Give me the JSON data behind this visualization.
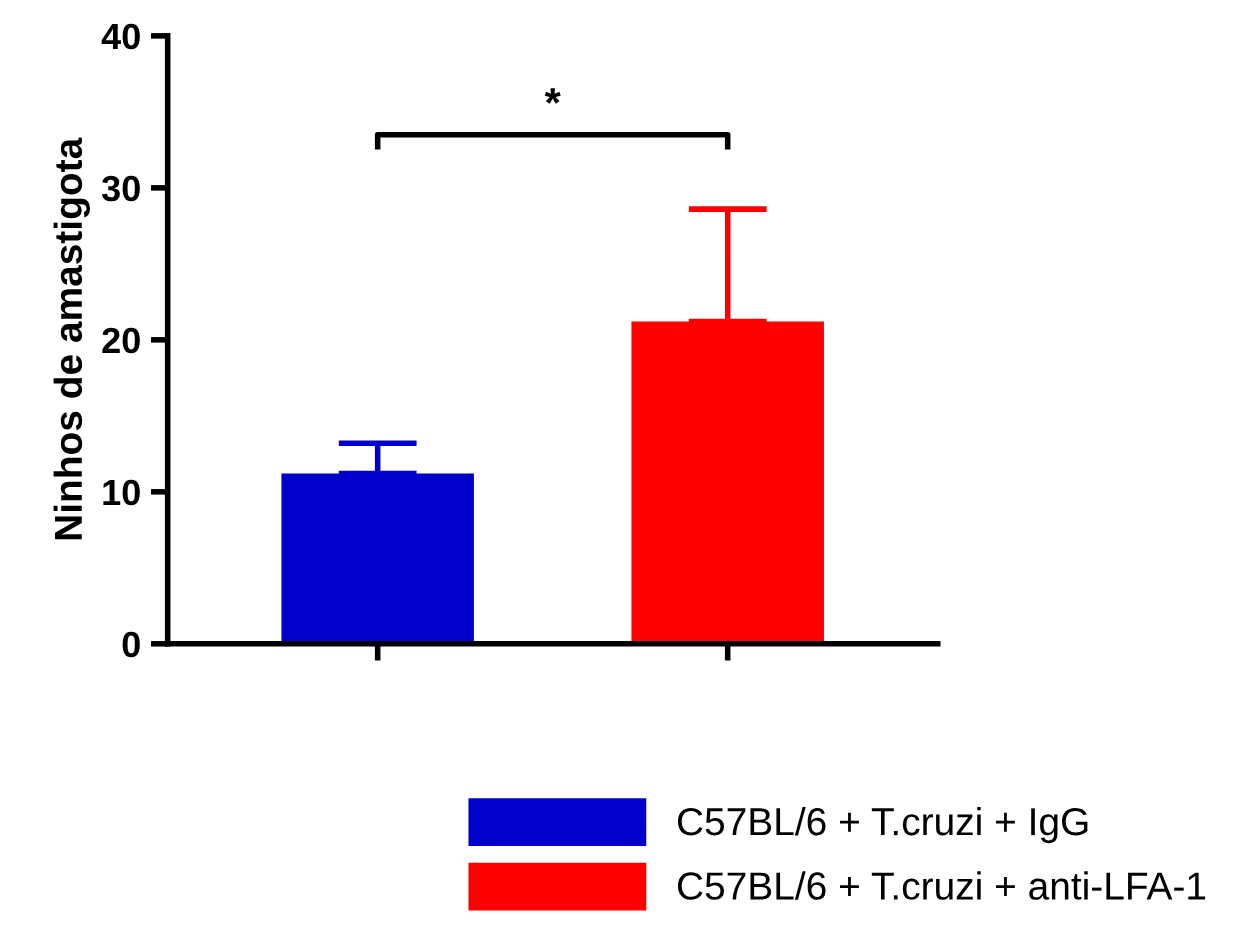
{
  "chart_data": {
    "type": "bar",
    "ylabel": "Ninhos de amastigota",
    "categories": [
      null,
      null
    ],
    "series": [
      {
        "name": "C57BL/6 + T.cruzi + IgG",
        "color": "#0000cc",
        "values": [
          11.2,
          null
        ],
        "errors": [
          [
            11.2,
            13.2
          ],
          null
        ]
      },
      {
        "name": "C57BL/6 + T.cruzi + anti-LFA-1",
        "color": "#ff0000",
        "values": [
          null,
          21.2
        ],
        "errors": [
          null,
          [
            21.2,
            28.6
          ]
        ]
      }
    ],
    "ylim": [
      0,
      40
    ],
    "yticks": [
      0,
      10,
      20,
      30,
      40
    ],
    "grid": false,
    "legend": "bottom",
    "annotations": [
      "*"
    ]
  }
}
